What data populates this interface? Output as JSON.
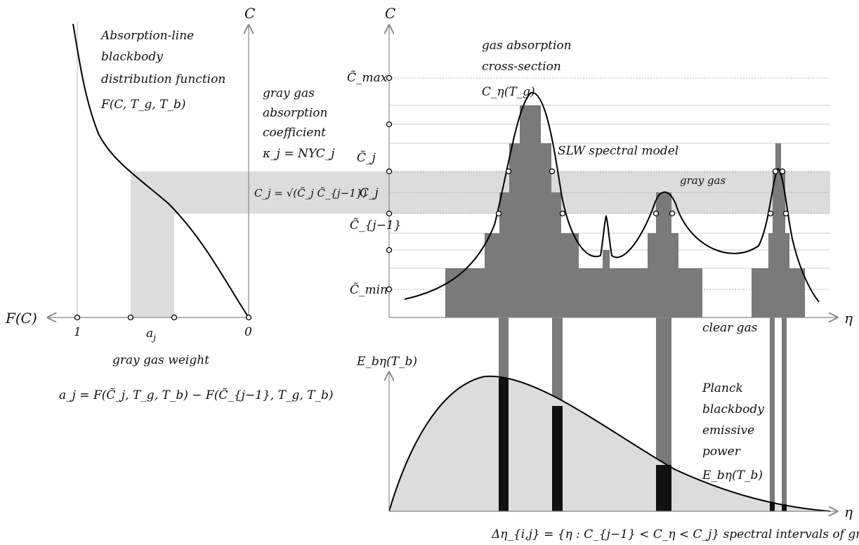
{
  "left_panel": {
    "axis_y": "C",
    "axis_x": "F(C)",
    "tick_one": "1",
    "tick_zero": "0",
    "tick_aj": "a",
    "tick_aj_sub": "j",
    "title_lines": [
      "Absorption-line",
      "blackbody",
      "distribution function"
    ],
    "title_formula": "F(C, T_g, T_b)",
    "weight_label": "gray gas weight",
    "weight_formula": "a_j = F(C̃_j, T_g, T_b) − F(C̃_{j−1}, T_g, T_b)"
  },
  "middle_labels": {
    "coeff_lines": [
      "gray gas",
      "absorption",
      "coefficient"
    ],
    "coeff_formula": "κ_j = NYC_j",
    "cj_formula": "C_j = √(C̃_j C̃_{j−1})"
  },
  "right_panel": {
    "axis_y": "C",
    "axis_x": "η",
    "title_lines": [
      "gas absorption",
      "cross-section"
    ],
    "cross_section_label": "C_η(T_g)",
    "slw_label": "SLW spectral model",
    "gray_gas_label": "gray gas",
    "clear_gas_label": "clear gas",
    "c_labels": [
      "C̃_max",
      "C̃_j",
      "C_j",
      "C̃_{j−1}",
      "C̃_min"
    ]
  },
  "bottom_panel": {
    "axis_y": "E_bη(T_b)",
    "axis_x": "η",
    "planck_lines": [
      "Planck",
      "blackbody",
      "emissive",
      "power"
    ],
    "planck_formula": "E_bη(T_b)",
    "intervals_formula": "Δη_{i,j} = {η : C_{j−1} < C_η < C_j}",
    "intervals_text": "spectral intervals of gray gas j"
  }
}
